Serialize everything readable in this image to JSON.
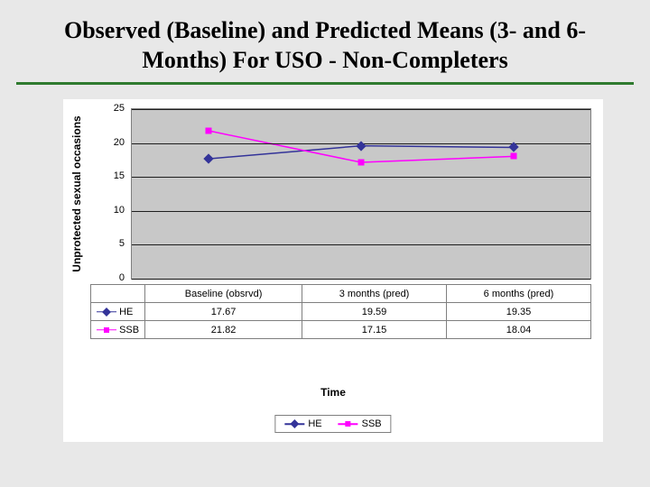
{
  "title": "Observed (Baseline) and Predicted Means (3- and 6-Months) For USO - Non-Completers",
  "divider_color": "#2f7a2f",
  "background_color": "#e8e8e8",
  "chart": {
    "type": "line",
    "plot_bg": "#c8c8c8",
    "grid_color": "#000000",
    "axis_color": "#7f7f7f",
    "ylabel": "Unprotected sexual occasions",
    "xlabel": "Time",
    "ylim": [
      0,
      25
    ],
    "ytick_step": 5,
    "yticks": [
      0,
      5,
      10,
      15,
      20,
      25
    ],
    "categories": [
      "Baseline (obsrvd)",
      "3 months (pred)",
      "6 months (pred)"
    ],
    "series": [
      {
        "name": "HE",
        "color": "#333399",
        "marker": "diamond",
        "values": [
          17.67,
          19.59,
          19.35
        ]
      },
      {
        "name": "SSB",
        "color": "#ff00ff",
        "marker": "square",
        "values": [
          21.82,
          17.15,
          18.04
        ]
      }
    ],
    "label_fontsize": 12,
    "tick_fontsize": 11,
    "line_width": 1.5,
    "marker_size": 7
  },
  "legend": {
    "items": [
      {
        "label": "HE",
        "color": "#333399",
        "marker": "diamond"
      },
      {
        "label": "SSB",
        "color": "#ff00ff",
        "marker": "square"
      }
    ]
  }
}
